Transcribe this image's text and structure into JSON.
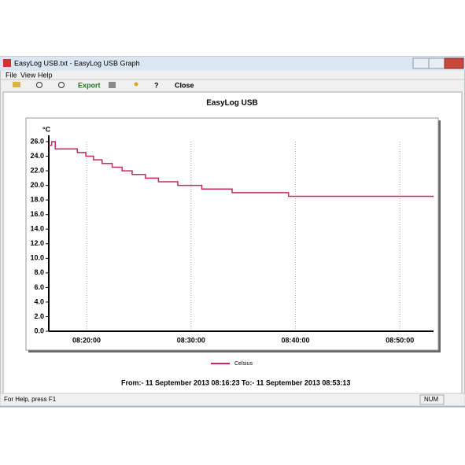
{
  "window": {
    "title": "EasyLog USB.txt - EasyLog USB Graph",
    "menu": [
      "File",
      "View",
      "Help"
    ],
    "toolbar": [
      "Export",
      "Close"
    ],
    "status": [
      "For Help, press F1",
      "NUM"
    ]
  },
  "chart_data": {
    "type": "line",
    "title": "EasyLog USB",
    "y_label": "°C",
    "x": [
      "08:16:23",
      "08:16:40",
      "08:17:00",
      "08:19:07",
      "08:19:56",
      "08:20:40",
      "08:21:29",
      "08:22:27",
      "08:23:24",
      "08:24:22",
      "08:25:38",
      "08:26:53",
      "08:28:44",
      "08:31:02",
      "08:33:56",
      "08:39:20",
      "08:53:13"
    ],
    "series": [
      {
        "name": "Celsius",
        "color": "#c8285a",
        "values": [
          25.5,
          26.0,
          25.0,
          24.5,
          24.0,
          23.5,
          23.0,
          22.5,
          22.0,
          21.5,
          21.0,
          20.5,
          20.0,
          19.5,
          19.0,
          18.5,
          18.5
        ]
      }
    ],
    "step": true,
    "xlim": [
      "08:16:23",
      "08:53:13"
    ],
    "xticks": [
      "08:20:00",
      "08:30:00",
      "08:40:00",
      "08:50:00"
    ],
    "ylim": [
      0,
      26
    ],
    "yticks": [
      {
        "value": 0,
        "label": "0.0"
      },
      {
        "value": 2,
        "label": "2.0"
      },
      {
        "value": 4,
        "label": "4.0"
      },
      {
        "value": 6,
        "label": "6.0"
      },
      {
        "value": 8,
        "label": "8.0"
      },
      {
        "value": 10,
        "label": "10.0"
      },
      {
        "value": 12,
        "label": "12.0"
      },
      {
        "value": 14,
        "label": "14.0"
      },
      {
        "value": 16,
        "label": "16.0"
      },
      {
        "value": 18,
        "label": "18.0"
      },
      {
        "value": 20,
        "label": "20.0"
      },
      {
        "value": 22,
        "label": "22.0"
      },
      {
        "value": 24,
        "label": "24.0"
      },
      {
        "value": 26,
        "label": "26.0"
      }
    ],
    "grid": true,
    "from": "From:-  11 September 2013 08:16:23",
    "to": "To:-  11 September 2013 08:53:13"
  }
}
